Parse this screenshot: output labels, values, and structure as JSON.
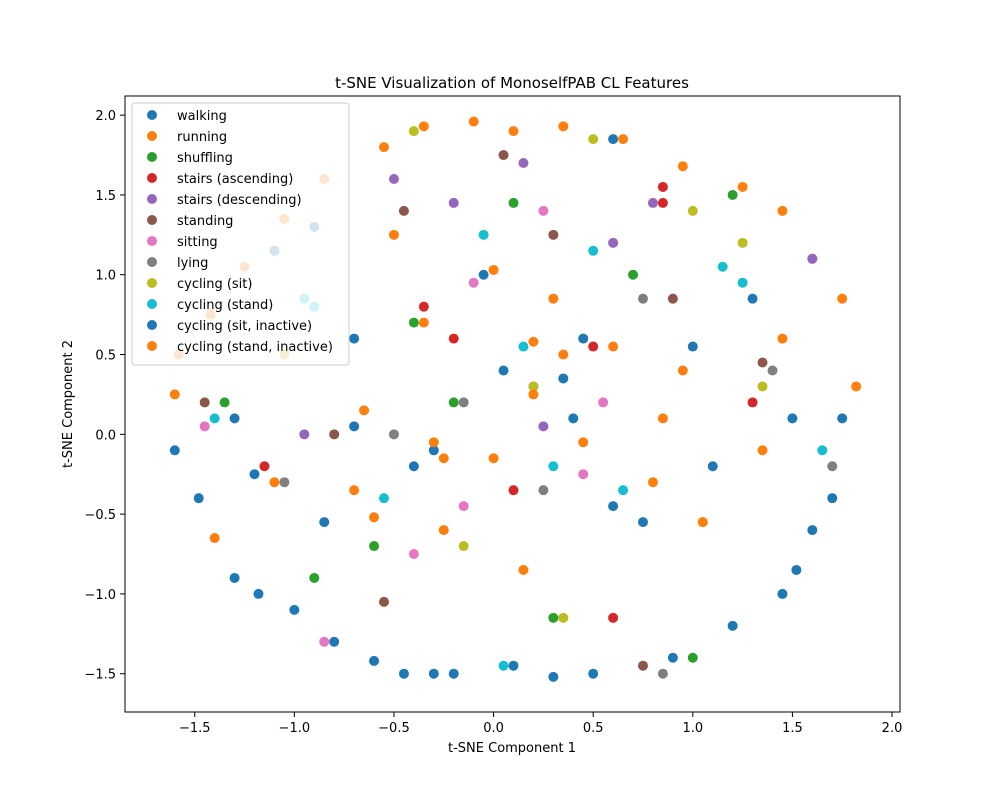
{
  "chart_data": {
    "type": "scatter",
    "title": "t-SNE Visualization of MonoselfPAB CL Features",
    "xlabel": "t-SNE Component 1",
    "ylabel": "t-SNE Component 2",
    "xlim": [
      -1.85,
      2.04
    ],
    "ylim": [
      -1.74,
      2.12
    ],
    "xticks": [
      -1.5,
      -1.0,
      -0.5,
      0.0,
      0.5,
      1.0,
      1.5,
      2.0
    ],
    "xtick_labels": [
      "−1.5",
      "−1.0",
      "−0.5",
      "0.0",
      "0.5",
      "1.0",
      "1.5",
      "2.0"
    ],
    "yticks": [
      -1.5,
      -1.0,
      -0.5,
      0.0,
      0.5,
      1.0,
      1.5,
      2.0
    ],
    "ytick_labels": [
      "−1.5",
      "−1.0",
      "−0.5",
      "0.0",
      "0.5",
      "1.0",
      "1.5",
      "2.0"
    ],
    "grid": false,
    "legend_position": "top-left",
    "series": [
      {
        "name": "walking",
        "color": "#1f77b4",
        "x": [
          -1.6,
          -1.48,
          -1.3,
          -1.18,
          -1.0,
          -0.8,
          -0.6,
          -0.45,
          -0.3,
          1.45,
          1.52,
          1.6,
          1.7,
          1.75,
          0.3,
          0.1,
          -0.2,
          0.5,
          0.9,
          1.2,
          0.6,
          -0.9,
          -1.1,
          -0.7,
          0.2,
          0.4,
          -0.4,
          1.0,
          1.3
        ],
        "y": [
          -0.1,
          -0.4,
          -0.9,
          -1.0,
          -1.1,
          -1.3,
          -1.42,
          -1.5,
          -1.5,
          -1.0,
          -0.85,
          -0.6,
          -0.4,
          0.1,
          -1.52,
          -1.45,
          -1.5,
          -1.5,
          -1.4,
          -1.2,
          1.85,
          1.3,
          1.15,
          0.6,
          0.3,
          0.1,
          -0.2,
          0.55,
          0.85
        ]
      },
      {
        "name": "running",
        "color": "#ff7f0e",
        "x": [
          -1.58,
          -1.42,
          -1.25,
          -1.05,
          -0.85,
          -0.55,
          -0.35,
          -0.1,
          0.1,
          0.35,
          0.65,
          0.95,
          1.25,
          1.45,
          1.6,
          1.75,
          1.82,
          -1.4,
          -1.6,
          -0.5,
          0.0,
          0.3,
          0.6,
          0.95,
          1.35,
          0.2,
          -0.25,
          0.15,
          -0.6,
          1.05,
          -0.35
        ],
        "y": [
          0.5,
          0.75,
          1.05,
          1.35,
          1.6,
          1.8,
          1.93,
          1.96,
          1.9,
          1.93,
          1.85,
          1.68,
          1.55,
          1.4,
          1.1,
          0.85,
          0.3,
          -0.65,
          0.25,
          1.25,
          1.03,
          0.85,
          0.55,
          0.4,
          -0.1,
          0.58,
          -0.15,
          -0.85,
          -0.52,
          -0.55,
          0.7
        ]
      },
      {
        "name": "shuffling",
        "color": "#2ca02c",
        "x": [
          -1.35,
          -0.6,
          0.1,
          0.7,
          1.0,
          -0.2,
          -0.4,
          0.3,
          1.2,
          -0.9
        ],
        "y": [
          0.2,
          -0.7,
          1.45,
          1.0,
          -1.4,
          0.2,
          0.7,
          -1.15,
          1.5,
          -0.9
        ]
      },
      {
        "name": "stairs (ascending)",
        "color": "#d62728",
        "x": [
          -0.35,
          0.85,
          0.5,
          0.1,
          1.3,
          -1.15,
          -0.2,
          0.6,
          0.85
        ],
        "y": [
          0.8,
          1.55,
          0.55,
          -0.35,
          0.2,
          -0.2,
          0.6,
          -1.15,
          1.45
        ]
      },
      {
        "name": "stairs (descending)",
        "color": "#9467bd",
        "x": [
          -0.5,
          0.15,
          0.6,
          -0.2,
          0.8,
          0.25,
          -0.95,
          1.6
        ],
        "y": [
          1.6,
          1.7,
          1.2,
          1.45,
          1.45,
          0.05,
          0.0,
          1.1
        ]
      },
      {
        "name": "standing",
        "color": "#8c564b",
        "x": [
          -0.45,
          0.3,
          0.9,
          0.05,
          -0.55,
          1.35,
          0.75,
          -1.45,
          -0.8
        ],
        "y": [
          1.4,
          1.25,
          0.85,
          1.75,
          -1.05,
          0.45,
          -1.45,
          0.2,
          0.0
        ]
      },
      {
        "name": "sitting",
        "color": "#e377c2",
        "x": [
          -0.4,
          0.25,
          -0.1,
          0.45,
          -0.85,
          -1.45,
          0.55,
          -0.15
        ],
        "y": [
          -0.75,
          1.4,
          0.95,
          -0.25,
          -1.3,
          0.05,
          0.2,
          -0.45
        ]
      },
      {
        "name": "lying",
        "color": "#7f7f7f",
        "x": [
          -1.05,
          0.75,
          -0.15,
          1.4,
          0.25,
          -0.5,
          1.7,
          0.85,
          -0.95
        ],
        "y": [
          -0.3,
          0.85,
          0.2,
          0.4,
          -0.35,
          0.0,
          -0.2,
          -1.5,
          0.85
        ]
      },
      {
        "name": "cycling (sit)",
        "color": "#bcbd22",
        "x": [
          -0.4,
          1.0,
          0.5,
          1.25,
          -1.05,
          0.2,
          1.35,
          0.35,
          -0.15
        ],
        "y": [
          1.9,
          1.4,
          1.85,
          1.2,
          0.5,
          0.3,
          0.3,
          -1.15,
          -0.7
        ]
      },
      {
        "name": "cycling (stand)",
        "color": "#17becf",
        "x": [
          -0.95,
          -0.9,
          -1.4,
          0.15,
          0.65,
          1.25,
          -0.55,
          -0.05,
          0.3,
          0.05,
          1.65,
          0.5,
          1.15
        ],
        "y": [
          0.85,
          0.8,
          0.1,
          0.55,
          -0.35,
          0.95,
          -0.4,
          1.25,
          -0.2,
          -1.45,
          -0.1,
          1.15,
          1.05
        ]
      },
      {
        "name": "cycling (sit, inactive)",
        "color": "#1f77b4",
        "x": [
          -1.2,
          -0.85,
          -0.3,
          0.35,
          0.05,
          0.6,
          1.1,
          1.5,
          -0.05,
          0.45,
          0.75,
          -0.7,
          -1.3
        ],
        "y": [
          -0.25,
          -0.55,
          -0.1,
          0.35,
          0.4,
          -0.45,
          -0.2,
          0.1,
          1.0,
          0.6,
          -0.55,
          0.05,
          0.1
        ]
      },
      {
        "name": "cycling (stand, inactive)",
        "color": "#ff7f0e",
        "x": [
          -0.7,
          -0.25,
          0.2,
          0.45,
          0.85,
          1.45,
          -1.1,
          -0.3,
          0.0,
          0.35,
          0.8,
          -0.65,
          1.05
        ],
        "y": [
          -0.35,
          -0.6,
          0.25,
          -0.05,
          0.1,
          0.6,
          -0.3,
          -0.05,
          -0.15,
          0.5,
          -0.3,
          0.15,
          -0.55
        ]
      }
    ]
  }
}
